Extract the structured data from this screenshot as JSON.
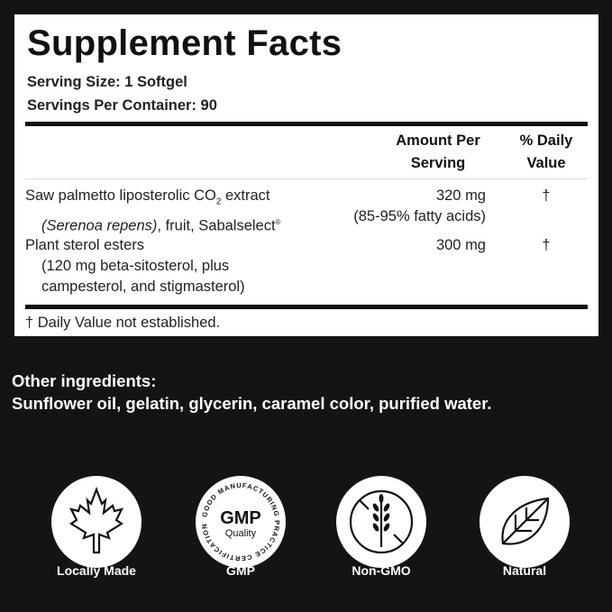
{
  "facts": {
    "title": "Supplement Facts",
    "serving_size": "Serving Size: 1 Softgel",
    "servings_per_container": "Servings Per Container: 90",
    "headers": {
      "amount_line1": "Amount Per",
      "amount_line2": "Serving",
      "dv_line1": "% Daily",
      "dv_line2": "Value"
    },
    "rows": [
      {
        "name": "Saw palmetto liposterolic CO",
        "name_sub": "2",
        "name_end": " extract",
        "detail_italic": "(Serenoa repens)",
        "detail_rest": ", fruit, Sabalselect",
        "detail_mark": "®",
        "amount": "320 mg",
        "amount_detail": "(85-95% fatty acids)",
        "dv": "†"
      },
      {
        "name": "Plant sterol esters",
        "detail1": "(120 mg beta-sitosterol, plus",
        "detail2": "campesterol, and stigmasterol)",
        "amount": "300 mg",
        "dv": "†"
      }
    ],
    "footnote": "† Daily Value not established."
  },
  "other": {
    "heading": "Other ingredients:",
    "text": "Sunflower oil, gelatin, glycerin, caramel color, purified water."
  },
  "badges": [
    {
      "label": "Locally Made",
      "icon": "maple-leaf-icon"
    },
    {
      "label": "GMP",
      "icon": "gmp-seal-icon",
      "seal_main": "GMP",
      "seal_sub": "Quality",
      "seal_ring": "GOOD MANUFACTURING PRACTICE CERTIFICATION"
    },
    {
      "label": "Non-GMO",
      "icon": "no-wheat-icon"
    },
    {
      "label": "Natural",
      "icon": "leaf-icon"
    }
  ]
}
